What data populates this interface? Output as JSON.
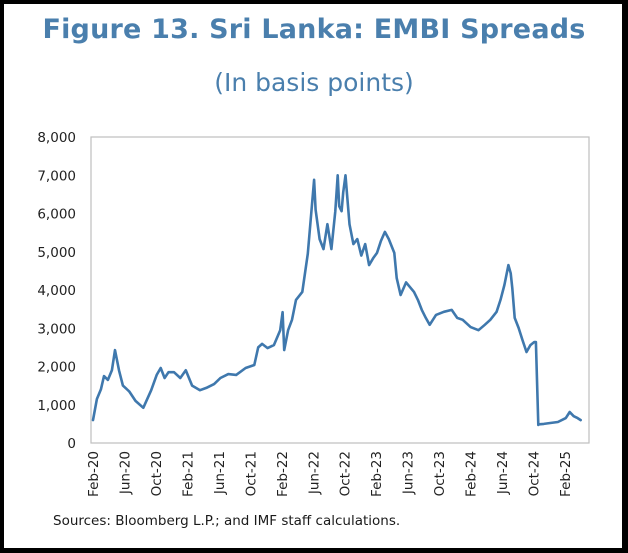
{
  "figure": {
    "title": "Figure 13. Sri Lanka: EMBI Spreads",
    "subtitle": "(In basis points)",
    "source": "Sources: Bloomberg L.P.; and IMF staff calculations."
  },
  "colors": {
    "line": "#3f78ad",
    "title": "#4a7fad",
    "axis": "#bfbfbf"
  },
  "chart_data": {
    "type": "line",
    "title": "Figure 13. Sri Lanka: EMBI Spreads",
    "subtitle": "(In basis points)",
    "xlabel": "",
    "ylabel": "",
    "ylim": [
      0,
      8000
    ],
    "yticks": [
      0,
      1000,
      2000,
      3000,
      4000,
      5000,
      6000,
      7000,
      8000
    ],
    "ytick_labels": [
      "0",
      "1,000",
      "2,000",
      "3,000",
      "4,000",
      "5,000",
      "6,000",
      "7,000",
      "8,000"
    ],
    "xlim_months": [
      0,
      63.3
    ],
    "xtick_months": [
      0,
      4,
      8,
      12,
      16,
      20,
      24,
      28,
      32,
      36,
      40,
      44,
      48,
      52,
      56,
      60
    ],
    "xtick_labels": [
      "Feb-20",
      "Jun-20",
      "Oct-20",
      "Feb-21",
      "Jun-21",
      "Oct-21",
      "Feb-22",
      "Jun-22",
      "Oct-22",
      "Feb-23",
      "Jun-23",
      "Oct-23",
      "Feb-24",
      "Jun-24",
      "Oct-24",
      "Feb-25"
    ],
    "grid": false,
    "legend": "none",
    "series": [
      {
        "name": "EMBI Spread",
        "x_months": [
          0,
          0.5,
          1.0,
          1.4,
          1.9,
          2.4,
          2.8,
          3.3,
          3.8,
          4.6,
          5.4,
          6.4,
          7.4,
          8.1,
          8.6,
          9.1,
          9.6,
          10.3,
          11.1,
          11.8,
          12.6,
          13.6,
          14.4,
          15.4,
          16.2,
          17.2,
          18.2,
          19.4,
          20.5,
          21.0,
          21.5,
          22.2,
          23.0,
          23.8,
          24.1,
          24.3,
          24.8,
          25.3,
          25.8,
          26.6,
          27.3,
          28.1,
          28.3,
          28.8,
          29.3,
          29.8,
          30.3,
          30.8,
          31.1,
          31.3,
          31.6,
          31.8,
          32.1,
          32.3,
          32.6,
          33.1,
          33.6,
          34.1,
          34.6,
          35.1,
          35.6,
          36.1,
          36.6,
          37.1,
          37.6,
          38.3,
          38.6,
          39.1,
          39.8,
          40.8,
          41.3,
          41.8,
          42.3,
          42.8,
          43.6,
          44.6,
          45.6,
          46.3,
          47.0,
          48.0,
          49.0,
          49.8,
          50.5,
          51.3,
          51.8,
          52.3,
          52.8,
          53.1,
          53.3,
          53.6,
          54.1,
          54.6,
          55.1,
          55.6,
          56.1,
          56.3,
          56.6,
          56.7,
          57.3,
          58.0,
          59.1,
          60.1,
          60.6,
          61.1,
          61.6,
          62.0
        ],
        "values": [
          600,
          1150,
          1400,
          1750,
          1650,
          1900,
          2430,
          1900,
          1500,
          1350,
          1100,
          920,
          1380,
          1780,
          1960,
          1700,
          1850,
          1850,
          1700,
          1900,
          1500,
          1380,
          1440,
          1540,
          1700,
          1800,
          1780,
          1960,
          2040,
          2500,
          2590,
          2480,
          2560,
          2950,
          3420,
          2430,
          2950,
          3220,
          3740,
          3950,
          4950,
          6880,
          6100,
          5330,
          5070,
          5720,
          5070,
          6060,
          7000,
          6190,
          6060,
          6550,
          7000,
          6480,
          5720,
          5200,
          5330,
          4900,
          5200,
          4650,
          4830,
          4970,
          5280,
          5520,
          5330,
          4970,
          4310,
          3870,
          4200,
          3950,
          3740,
          3480,
          3270,
          3090,
          3350,
          3430,
          3480,
          3270,
          3220,
          3030,
          2950,
          3090,
          3220,
          3430,
          3740,
          4130,
          4650,
          4440,
          4050,
          3270,
          3010,
          2690,
          2380,
          2560,
          2640,
          2640,
          470,
          490,
          500,
          520,
          550,
          650,
          810,
          700,
          650,
          600
        ]
      }
    ]
  }
}
